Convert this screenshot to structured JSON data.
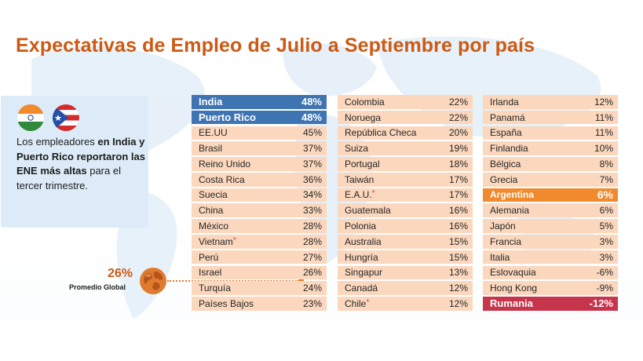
{
  "title": "Expectativas de Empleo de Julio a Septiembre por país",
  "colors": {
    "title": "#cc5a14",
    "highlight_top": "#3f74b3",
    "highlight_argentina": "#f1892d",
    "highlight_bottom": "#c7354c",
    "row_bg": "#fbd7bd",
    "callout_bg": "#dcebf7"
  },
  "callout": {
    "flags": [
      "india-flag-icon",
      "puerto-rico-flag-icon"
    ],
    "text_1": "Los empleadores ",
    "text_2": "en India y Puerto Rico reportaron las ENE más altas",
    "text_3": " para el tercer trimestre."
  },
  "global_average": {
    "value": "26%",
    "label": "Promedio Global",
    "icon": "globe-icon"
  },
  "columns": [
    [
      {
        "country": "India",
        "value": "48%",
        "style": "blue"
      },
      {
        "country": "Puerto Rico",
        "value": "48%",
        "style": "blue"
      },
      {
        "country": "EE.UU",
        "value": "45%"
      },
      {
        "country": "Brasil",
        "value": "37%"
      },
      {
        "country": "Reino Unido",
        "value": "37%"
      },
      {
        "country": "Costa Rica",
        "value": "36%"
      },
      {
        "country": "Suecia",
        "value": "34%"
      },
      {
        "country": "China",
        "value": "33%"
      },
      {
        "country": "México",
        "value": "28%"
      },
      {
        "country": "Vietnam",
        "value": "28%",
        "star": "*"
      },
      {
        "country": "Perú",
        "value": "27%"
      },
      {
        "country": "Israel",
        "value": "26%"
      },
      {
        "country": "Turquía",
        "value": "24%"
      },
      {
        "country": "Países Bajos",
        "value": "23%"
      }
    ],
    [
      {
        "country": "Colombia",
        "value": "22%"
      },
      {
        "country": "Noruega",
        "value": "22%"
      },
      {
        "country": "República Checa",
        "value": "20%"
      },
      {
        "country": "Suiza",
        "value": "19%"
      },
      {
        "country": "Portugal",
        "value": "18%"
      },
      {
        "country": "Taiwán",
        "value": "17%"
      },
      {
        "country": "E.A.U.",
        "value": "17%",
        "star": "*"
      },
      {
        "country": "Guatemala",
        "value": "16%"
      },
      {
        "country": "Polonia",
        "value": "16%"
      },
      {
        "country": "Australia",
        "value": "15%"
      },
      {
        "country": "Hungría",
        "value": "15%"
      },
      {
        "country": "Singapur",
        "value": "13%"
      },
      {
        "country": "Canadá",
        "value": "12%"
      },
      {
        "country": "Chile",
        "value": "12%",
        "star": "*"
      }
    ],
    [
      {
        "country": "Irlanda",
        "value": "12%"
      },
      {
        "country": "Panamá",
        "value": "11%"
      },
      {
        "country": "España",
        "value": "11%"
      },
      {
        "country": "Finlandia",
        "value": "10%"
      },
      {
        "country": "Bélgica",
        "value": "8%"
      },
      {
        "country": "Grecia",
        "value": "7%"
      },
      {
        "country": "Argentina",
        "value": "6%",
        "style": "orange"
      },
      {
        "country": "Alemania",
        "value": "6%"
      },
      {
        "country": "Japón",
        "value": "5%"
      },
      {
        "country": "Francia",
        "value": "3%"
      },
      {
        "country": "Italia",
        "value": "3%"
      },
      {
        "country": "Eslovaquia",
        "value": "-6%"
      },
      {
        "country": "Hong Kong",
        "value": "-9%"
      },
      {
        "country": "Rumania",
        "value": "-12%",
        "style": "red"
      }
    ]
  ]
}
